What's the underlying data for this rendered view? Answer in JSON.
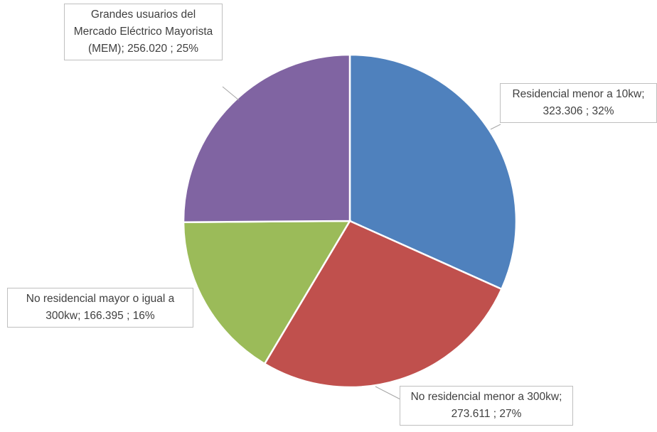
{
  "chart_data": {
    "type": "pie",
    "categories": [
      "Residencial menor a 10kw",
      "No residencial menor a 300kw",
      "No residencial mayor o igual a 300kw",
      "Grandes usuarios del Mercado Eléctrico Mayorista (MEM)"
    ],
    "values": [
      323306,
      273611,
      166395,
      256020
    ],
    "value_labels": [
      "323.306",
      "273.611",
      "166.395",
      "256.020"
    ],
    "percents": [
      32,
      27,
      16,
      25
    ],
    "percent_labels": [
      "32%",
      "27%",
      "16%",
      "25%"
    ],
    "separator": ";",
    "colors": [
      "#4f81bd",
      "#c0504d",
      "#9bbb59",
      "#8064a2"
    ]
  }
}
